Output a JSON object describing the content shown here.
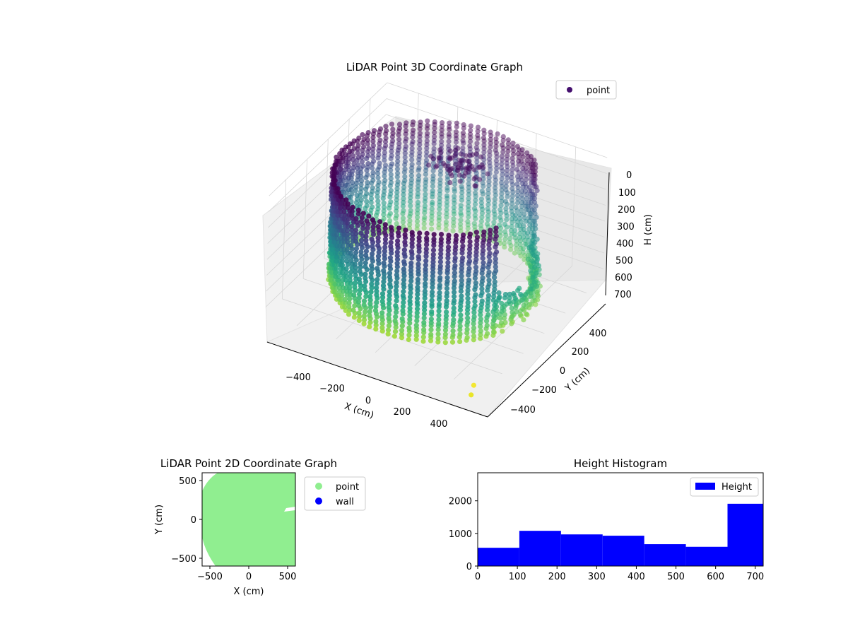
{
  "figure": {
    "background": "#ffffff"
  },
  "chart_data": [
    {
      "type": "scatter3d",
      "title": "LiDAR Point 3D Coordinate Graph",
      "xlabel": "X (cm)",
      "ylabel": "Y (cm)",
      "zlabel": "H (cm)",
      "x_ticks": [
        "−400",
        "−200",
        "0",
        "200",
        "400"
      ],
      "y_ticks": [
        "−400",
        "−200",
        "0",
        "200",
        "400"
      ],
      "z_ticks": [
        "0",
        "100",
        "200",
        "300",
        "400",
        "500",
        "600",
        "700"
      ],
      "xlim": [
        -560,
        560
      ],
      "ylim": [
        -560,
        560
      ],
      "zlim": [
        0,
        750
      ],
      "z_inverted": true,
      "colormap": "viridis",
      "legend": {
        "position": "top-right",
        "entries": [
          {
            "label": "point",
            "color": "#440f6e"
          }
        ]
      },
      "structure": {
        "description_shape": "cylindrical wall",
        "radius": 470,
        "height_range": [
          0,
          700
        ],
        "opening_angle_deg": [
          -25,
          45
        ],
        "cluster_center": [
          -100,
          400,
          230
        ]
      }
    },
    {
      "type": "scatter",
      "title": "LiDAR Point 2D Coordinate Graph",
      "xlabel": "X (cm)",
      "ylabel": "Y (cm)",
      "x_ticks": [
        "−500",
        "0",
        "500"
      ],
      "y_ticks": [
        "−500",
        "0",
        "500"
      ],
      "xlim": [
        -600,
        600
      ],
      "ylim": [
        -600,
        600
      ],
      "legend": {
        "position": "outside right",
        "entries": [
          {
            "label": "point",
            "color": "#90ee90"
          },
          {
            "label": "wall",
            "color": "#0000ff"
          }
        ]
      }
    },
    {
      "type": "bar",
      "title": "Height Histogram",
      "xlabel": "",
      "ylabel": "",
      "x_ticks": [
        "0",
        "100",
        "200",
        "300",
        "400",
        "500",
        "600",
        "700"
      ],
      "y_ticks": [
        "0",
        "1000",
        "2000"
      ],
      "xlim": [
        0,
        720
      ],
      "ylim": [
        0,
        2860
      ],
      "bin_edges": [
        0,
        105,
        210,
        315,
        420,
        525,
        630,
        720
      ],
      "values": [
        560,
        1080,
        970,
        930,
        670,
        590,
        1910
      ],
      "color": "#0000ff",
      "legend": {
        "position": "top-right",
        "entries": [
          {
            "label": "Height",
            "color": "#0000ff"
          }
        ]
      }
    }
  ]
}
